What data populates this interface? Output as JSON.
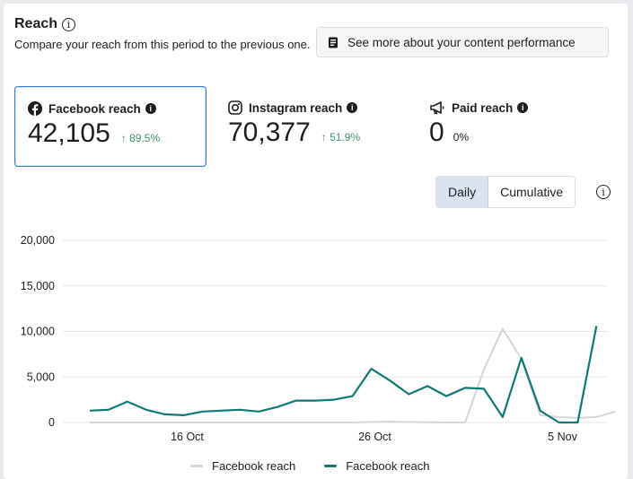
{
  "header": {
    "title": "Reach",
    "subtitle": "Compare your reach from this period to the previous one.",
    "see_more_label": "See more about your content performance"
  },
  "metrics": [
    {
      "label": "Facebook reach",
      "value": "42,105",
      "delta": "↑ 89.5%",
      "icon": "facebook-icon",
      "selected": true
    },
    {
      "label": "Instagram reach",
      "value": "70,377",
      "delta": "↑ 51.9%",
      "icon": "instagram-icon",
      "selected": false
    },
    {
      "label": "Paid reach",
      "value": "0",
      "delta": "0%",
      "icon": "megaphone-icon",
      "selected": false
    }
  ],
  "toggle": {
    "daily_label": "Daily",
    "cumulative_label": "Cumulative",
    "active": "Daily"
  },
  "colors": {
    "current": "#0d7a74",
    "previous": "#d3d6d9",
    "positive": "#42946a",
    "selected_border": "#3578e5"
  },
  "chart_data": {
    "type": "line",
    "y_ticks": [
      "20,000",
      "15,000",
      "10,000",
      "5,000",
      "0"
    ],
    "ylim": [
      0,
      20000
    ],
    "x_tick_labels": [
      "16 Oct",
      "26 Oct",
      "5 Nov"
    ],
    "x_tick_index": [
      5,
      15,
      25
    ],
    "series": [
      {
        "name": "Facebook reach",
        "color": "#d3d6d9",
        "values": [
          0,
          0,
          0,
          0,
          0,
          0,
          0,
          0,
          0,
          0,
          0,
          0,
          0,
          0,
          0,
          50,
          100,
          50,
          20,
          0,
          0,
          5800,
          10300,
          7000,
          800,
          600,
          500,
          600,
          1200
        ]
      },
      {
        "name": "Facebook reach",
        "color": "#0d7a74",
        "values": [
          1300,
          1400,
          2300,
          1400,
          900,
          800,
          1200,
          1300,
          1400,
          1200,
          1700,
          2400,
          2400,
          2500,
          2900,
          5900,
          4600,
          3100,
          4000,
          2900,
          3800,
          3700,
          600,
          7100,
          1300,
          0,
          0,
          10600
        ]
      }
    ]
  }
}
